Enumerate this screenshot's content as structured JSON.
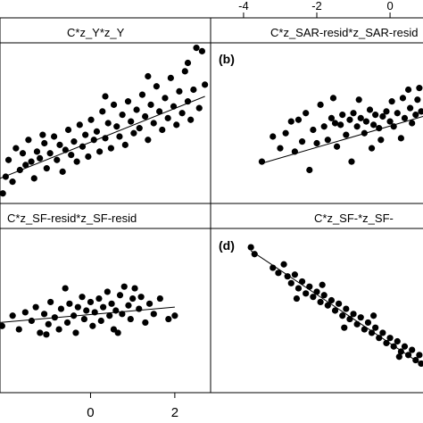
{
  "chart_data": [
    {
      "type": "scatter",
      "panel_label": "",
      "strip_title": "C*z_Y*z_Y",
      "xlim": [
        -2.0,
        1.7
      ],
      "ylim": [
        -2.2,
        2.6
      ],
      "line": [
        [
          -2.0,
          -1.45
        ],
        [
          1.6,
          1.0
        ]
      ],
      "points": [
        [
          -1.95,
          -1.9
        ],
        [
          -1.9,
          -1.4
        ],
        [
          -1.85,
          -0.9
        ],
        [
          -1.78,
          -1.55
        ],
        [
          -1.72,
          -0.55
        ],
        [
          -1.65,
          -1.2
        ],
        [
          -1.6,
          -0.7
        ],
        [
          -1.55,
          -1.05
        ],
        [
          -1.5,
          -0.3
        ],
        [
          -1.45,
          -0.95
        ],
        [
          -1.4,
          -1.45
        ],
        [
          -1.35,
          -0.65
        ],
        [
          -1.3,
          -0.85
        ],
        [
          -1.22,
          -0.4
        ],
        [
          -1.18,
          -1.15
        ],
        [
          -1.12,
          -0.7
        ],
        [
          -1.05,
          -0.2
        ],
        [
          -1.0,
          -0.9
        ],
        [
          -0.95,
          -0.45
        ],
        [
          -0.9,
          -1.25
        ],
        [
          -0.85,
          -0.6
        ],
        [
          -0.8,
          0.0
        ],
        [
          -0.75,
          -0.75
        ],
        [
          -0.7,
          -0.35
        ],
        [
          -0.65,
          -0.95
        ],
        [
          -0.6,
          0.15
        ],
        [
          -0.55,
          -0.5
        ],
        [
          -0.5,
          -0.15
        ],
        [
          -0.45,
          -0.8
        ],
        [
          -0.4,
          0.3
        ],
        [
          -0.35,
          -0.3
        ],
        [
          -0.3,
          -0.05
        ],
        [
          -0.25,
          -0.65
        ],
        [
          -0.2,
          0.55
        ],
        [
          -0.15,
          -0.25
        ],
        [
          -0.1,
          0.2
        ],
        [
          -0.05,
          -0.55
        ],
        [
          0.0,
          0.75
        ],
        [
          0.05,
          0.1
        ],
        [
          0.1,
          -0.2
        ],
        [
          0.15,
          0.45
        ],
        [
          0.2,
          -0.45
        ],
        [
          0.25,
          0.85
        ],
        [
          0.3,
          0.25
        ],
        [
          0.35,
          -0.1
        ],
        [
          0.4,
          0.6
        ],
        [
          0.45,
          0.05
        ],
        [
          0.5,
          1.05
        ],
        [
          0.55,
          0.4
        ],
        [
          0.6,
          -0.3
        ],
        [
          0.65,
          0.75
        ],
        [
          0.7,
          0.2
        ],
        [
          0.75,
          1.3
        ],
        [
          0.8,
          0.55
        ],
        [
          0.85,
          0.0
        ],
        [
          0.9,
          0.95
        ],
        [
          0.95,
          0.35
        ],
        [
          1.0,
          1.55
        ],
        [
          1.05,
          0.7
        ],
        [
          1.1,
          0.15
        ],
        [
          1.15,
          1.15
        ],
        [
          1.2,
          0.5
        ],
        [
          1.25,
          1.75
        ],
        [
          1.3,
          0.85
        ],
        [
          1.35,
          0.3
        ],
        [
          1.4,
          1.2
        ],
        [
          1.45,
          2.45
        ],
        [
          1.5,
          0.65
        ],
        [
          1.55,
          2.35
        ],
        [
          1.6,
          1.35
        ],
        [
          -1.25,
          -0.15
        ],
        [
          -0.15,
          1.0
        ],
        [
          0.6,
          1.6
        ],
        [
          1.3,
          2.0
        ]
      ]
    },
    {
      "type": "scatter",
      "panel_label": "(b)",
      "strip_title": "C*z_SAR-resid*z_SAR-resid",
      "xlim": [
        -4.9,
        0.9
      ],
      "ylim": [
        -2.2,
        2.6
      ],
      "line": [
        [
          -3.5,
          -1.0
        ],
        [
          0.9,
          0.4
        ]
      ],
      "points": [
        [
          -3.5,
          -0.95
        ],
        [
          -3.2,
          -0.2
        ],
        [
          -3.0,
          -0.55
        ],
        [
          -2.85,
          -0.1
        ],
        [
          -2.7,
          0.25
        ],
        [
          -2.6,
          -0.65
        ],
        [
          -2.5,
          0.3
        ],
        [
          -2.4,
          -0.35
        ],
        [
          -2.3,
          0.5
        ],
        [
          -2.2,
          -1.2
        ],
        [
          -2.1,
          0.0
        ],
        [
          -2.0,
          -0.4
        ],
        [
          -1.9,
          0.75
        ],
        [
          -1.8,
          0.1
        ],
        [
          -1.7,
          -0.3
        ],
        [
          -1.6,
          0.35
        ],
        [
          -1.5,
          0.2
        ],
        [
          -1.45,
          -0.5
        ],
        [
          -1.35,
          0.15
        ],
        [
          -1.3,
          0.45
        ],
        [
          -1.2,
          -0.15
        ],
        [
          -1.1,
          0.3
        ],
        [
          -1.05,
          -0.95
        ],
        [
          -1.0,
          0.5
        ],
        [
          -0.9,
          0.1
        ],
        [
          -0.85,
          0.9
        ],
        [
          -0.8,
          0.35
        ],
        [
          -0.7,
          -0.1
        ],
        [
          -0.65,
          0.25
        ],
        [
          -0.55,
          0.6
        ],
        [
          -0.5,
          -0.55
        ],
        [
          -0.45,
          0.15
        ],
        [
          -0.4,
          0.45
        ],
        [
          -0.3,
          0.05
        ],
        [
          -0.2,
          0.4
        ],
        [
          -0.1,
          0.55
        ],
        [
          0.0,
          0.25
        ],
        [
          0.05,
          0.85
        ],
        [
          0.1,
          0.1
        ],
        [
          0.2,
          0.5
        ],
        [
          0.3,
          -0.25
        ],
        [
          0.4,
          0.35
        ],
        [
          0.5,
          1.2
        ],
        [
          0.55,
          0.65
        ],
        [
          0.6,
          0.2
        ],
        [
          0.7,
          0.45
        ],
        [
          0.75,
          0.9
        ],
        [
          0.8,
          1.25
        ],
        [
          0.85,
          0.55
        ],
        [
          -1.55,
          0.95
        ],
        [
          -0.25,
          -0.3
        ],
        [
          0.35,
          0.95
        ]
      ]
    },
    {
      "type": "scatter",
      "panel_label": "",
      "strip_title": "C*z_SF-resid*z_SF-resid",
      "xlim": [
        -2.15,
        2.85
      ],
      "ylim": [
        -2.2,
        2.6
      ],
      "line": [
        [
          -2.15,
          -0.15
        ],
        [
          2.0,
          0.3
        ]
      ],
      "points": [
        [
          -2.1,
          -0.25
        ],
        [
          -1.85,
          0.05
        ],
        [
          -1.7,
          -0.35
        ],
        [
          -1.55,
          0.15
        ],
        [
          -1.4,
          -0.1
        ],
        [
          -1.3,
          0.3
        ],
        [
          -1.2,
          -0.45
        ],
        [
          -1.1,
          0.1
        ],
        [
          -1.0,
          -0.2
        ],
        [
          -0.95,
          0.45
        ],
        [
          -0.85,
          0.0
        ],
        [
          -0.75,
          -0.35
        ],
        [
          -0.7,
          0.25
        ],
        [
          -0.6,
          0.85
        ],
        [
          -0.55,
          -0.15
        ],
        [
          -0.5,
          0.4
        ],
        [
          -0.4,
          0.05
        ],
        [
          -0.35,
          -0.45
        ],
        [
          -0.3,
          0.3
        ],
        [
          -0.2,
          0.6
        ],
        [
          -0.15,
          -0.05
        ],
        [
          -0.1,
          0.2
        ],
        [
          0.0,
          0.45
        ],
        [
          0.05,
          -0.25
        ],
        [
          0.1,
          0.15
        ],
        [
          0.2,
          0.55
        ],
        [
          0.25,
          -0.1
        ],
        [
          0.3,
          0.3
        ],
        [
          0.4,
          0.75
        ],
        [
          0.45,
          0.05
        ],
        [
          0.5,
          0.4
        ],
        [
          0.55,
          -0.35
        ],
        [
          0.6,
          0.2
        ],
        [
          0.7,
          0.65
        ],
        [
          0.75,
          0.1
        ],
        [
          0.8,
          0.9
        ],
        [
          0.9,
          0.35
        ],
        [
          0.95,
          -0.05
        ],
        [
          1.0,
          0.55
        ],
        [
          1.05,
          0.85
        ],
        [
          1.15,
          0.25
        ],
        [
          1.2,
          0.6
        ],
        [
          1.3,
          -0.15
        ],
        [
          1.4,
          0.4
        ],
        [
          1.5,
          0.1
        ],
        [
          1.65,
          0.55
        ],
        [
          1.85,
          -0.05
        ],
        [
          2.0,
          0.05
        ],
        [
          -1.05,
          -0.5
        ],
        [
          0.65,
          -0.45
        ]
      ]
    },
    {
      "type": "scatter",
      "panel_label": "(d)",
      "strip_title": "C*z_SF-*z_SF-",
      "xlim": [
        -4.9,
        0.9
      ],
      "ylim": [
        -2.2,
        2.6
      ],
      "line": [
        [
          -3.8,
          1.95
        ],
        [
          0.9,
          -1.4
        ]
      ],
      "points": [
        [
          -3.8,
          2.05
        ],
        [
          -3.7,
          1.85
        ],
        [
          -3.2,
          1.45
        ],
        [
          -3.05,
          1.3
        ],
        [
          -2.9,
          1.55
        ],
        [
          -2.8,
          1.2
        ],
        [
          -2.7,
          1.0
        ],
        [
          -2.6,
          1.25
        ],
        [
          -2.5,
          0.85
        ],
        [
          -2.4,
          1.05
        ],
        [
          -2.3,
          0.7
        ],
        [
          -2.2,
          0.9
        ],
        [
          -2.1,
          0.6
        ],
        [
          -2.0,
          0.75
        ],
        [
          -1.9,
          0.45
        ],
        [
          -1.8,
          0.65
        ],
        [
          -1.7,
          0.35
        ],
        [
          -1.6,
          0.5
        ],
        [
          -1.5,
          0.2
        ],
        [
          -1.4,
          0.4
        ],
        [
          -1.3,
          0.05
        ],
        [
          -1.2,
          0.25
        ],
        [
          -1.1,
          -0.05
        ],
        [
          -1.0,
          0.1
        ],
        [
          -0.9,
          -0.2
        ],
        [
          -0.8,
          0.0
        ],
        [
          -0.7,
          -0.35
        ],
        [
          -0.6,
          -0.15
        ],
        [
          -0.5,
          -0.45
        ],
        [
          -0.4,
          -0.3
        ],
        [
          -0.3,
          -0.6
        ],
        [
          -0.2,
          -0.45
        ],
        [
          -0.1,
          -0.75
        ],
        [
          0.0,
          -0.6
        ],
        [
          0.1,
          -0.85
        ],
        [
          0.2,
          -0.7
        ],
        [
          0.3,
          -1.0
        ],
        [
          0.4,
          -0.85
        ],
        [
          0.5,
          -1.1
        ],
        [
          0.6,
          -0.95
        ],
        [
          0.7,
          -1.25
        ],
        [
          0.8,
          -1.1
        ],
        [
          0.85,
          -1.35
        ],
        [
          -2.55,
          0.55
        ],
        [
          -1.85,
          0.95
        ],
        [
          -1.25,
          -0.3
        ],
        [
          -0.45,
          0.05
        ],
        [
          0.25,
          -1.15
        ]
      ]
    }
  ],
  "axes": {
    "top_ticks": [
      {
        "value": -4,
        "label": "-4"
      },
      {
        "value": -2,
        "label": "-2"
      },
      {
        "value": 0,
        "label": "0"
      }
    ],
    "bottom_ticks": [
      {
        "value": 0,
        "label": "0"
      },
      {
        "value": 2,
        "label": "2"
      }
    ]
  },
  "colors": {
    "points": "#000000",
    "strip_background": "#ffffff",
    "frame": "#000000"
  }
}
